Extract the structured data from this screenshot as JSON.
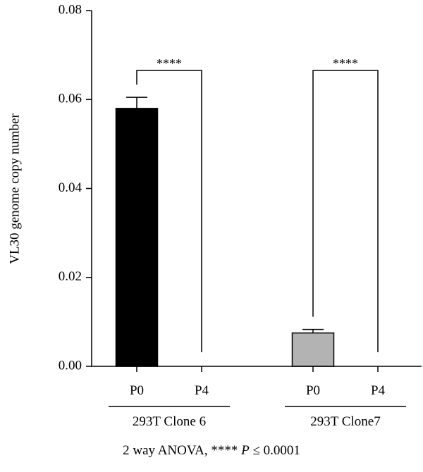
{
  "chart_data": {
    "type": "bar",
    "ylabel": "VL30 genome copy number",
    "ylim": [
      0,
      0.08
    ],
    "yticks": [
      "0.00",
      "0.02",
      "0.04",
      "0.06",
      "0.08"
    ],
    "groups": [
      {
        "name": "293T Clone 6",
        "bars": [
          {
            "category": "P0",
            "value": 0.058,
            "error": 0.0025,
            "color": "#000000"
          },
          {
            "category": "P4",
            "value": 0.0,
            "error": 0.0,
            "color": "#000000"
          }
        ],
        "significance": "****"
      },
      {
        "name": "293T Clone7",
        "bars": [
          {
            "category": "P0",
            "value": 0.0075,
            "error": 0.0008,
            "color": "#b3b3b3"
          },
          {
            "category": "P4",
            "value": 0.0,
            "error": 0.0,
            "color": "#b3b3b3"
          }
        ],
        "significance": "****"
      }
    ],
    "grid": false,
    "footnote": {
      "prefix": "2 way ANOVA, **** ",
      "italic": "P",
      "suffix": " ≤ 0.0001"
    }
  }
}
